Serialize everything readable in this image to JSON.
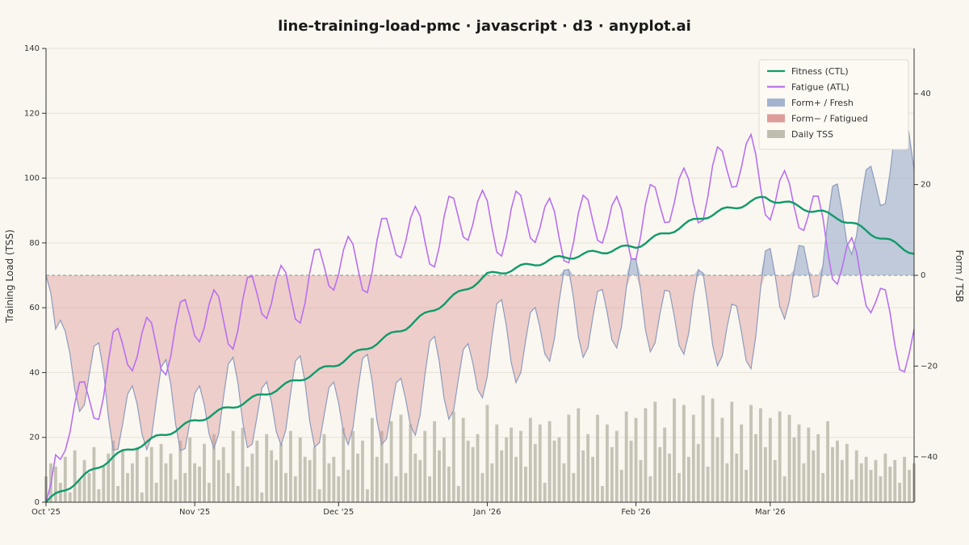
{
  "chart_data": {
    "type": "line",
    "title": "line-training-load-pmc · javascript · d3 · anyplot.ai",
    "ylabel_left": "Training Load (TSS)",
    "ylabel_right": "Form / TSB",
    "x_range": [
      "2025-10-01",
      "2026-03-31"
    ],
    "ylim_left": [
      0,
      140
    ],
    "ylim_right": [
      -50,
      50
    ],
    "yticks_left": [
      "0",
      "20",
      "40",
      "60",
      "80",
      "100",
      "120",
      "140"
    ],
    "yticks_right": [
      "−40",
      "−20",
      "0",
      "20",
      "40"
    ],
    "x_tick_labels": [
      "Oct '25",
      "Nov '25",
      "Dec '25",
      "Jan '26",
      "Feb '26",
      "Mar '26"
    ],
    "grid": true,
    "legend_position": "top-right",
    "legend": [
      {
        "key": "ctl",
        "label": "Fitness (CTL)",
        "color": "#0f9a6a",
        "kind": "line"
      },
      {
        "key": "atl",
        "label": "Fatigue (ATL)",
        "color": "#b86ff0",
        "kind": "line"
      },
      {
        "key": "form_pos",
        "label": "Form+ / Fresh",
        "color": "#9aaccc",
        "kind": "area"
      },
      {
        "key": "form_neg",
        "label": "Form− / Fatigued",
        "color": "#d99090",
        "kind": "area"
      },
      {
        "key": "tss",
        "label": "Daily TSS",
        "color": "#b8b5a8",
        "kind": "bar"
      }
    ],
    "ctl_keypoints": [
      [
        "2025-10-01",
        0
      ],
      [
        "2025-10-15",
        14
      ],
      [
        "2025-11-01",
        25
      ],
      [
        "2025-11-15",
        33
      ],
      [
        "2025-12-01",
        43
      ],
      [
        "2025-12-15",
        54
      ],
      [
        "2026-01-01",
        70
      ],
      [
        "2026-01-15",
        75
      ],
      [
        "2026-02-01",
        79
      ],
      [
        "2026-02-15",
        88
      ],
      [
        "2026-02-28",
        94
      ],
      [
        "2026-03-05",
        92
      ],
      [
        "2026-03-15",
        88
      ],
      [
        "2026-03-25",
        81
      ],
      [
        "2026-03-31",
        77
      ]
    ],
    "atl_keypoints": [
      [
        "2025-10-01",
        0
      ],
      [
        "2025-10-05",
        22
      ],
      [
        "2025-10-10",
        33
      ],
      [
        "2025-10-15",
        44
      ],
      [
        "2025-11-01",
        55
      ],
      [
        "2025-11-15",
        62
      ],
      [
        "2025-12-01",
        72
      ],
      [
        "2025-12-15",
        82
      ],
      [
        "2026-01-01",
        88
      ],
      [
        "2026-01-15",
        85
      ],
      [
        "2026-02-01",
        86
      ],
      [
        "2026-02-15",
        98
      ],
      [
        "2026-02-25",
        105
      ],
      [
        "2026-03-05",
        91
      ],
      [
        "2026-03-10",
        88
      ],
      [
        "2026-03-15",
        78
      ],
      [
        "2026-03-20",
        68
      ],
      [
        "2026-03-26",
        55
      ],
      [
        "2026-03-31",
        48
      ]
    ],
    "tss_daily": [
      8,
      12,
      11,
      6,
      14,
      3,
      16,
      7,
      13,
      9,
      17,
      4,
      11,
      15,
      19,
      5,
      16,
      9,
      12,
      17,
      3,
      14,
      17,
      6,
      18,
      12,
      15,
      7,
      19,
      9,
      20,
      12,
      11,
      18,
      6,
      21,
      13,
      17,
      9,
      22,
      5,
      23,
      11,
      15,
      19,
      3,
      21,
      16,
      13,
      18,
      9,
      22,
      8,
      20,
      14,
      13,
      17,
      4,
      21,
      12,
      14,
      8,
      23,
      10,
      22,
      15,
      19,
      4,
      26,
      14,
      22,
      12,
      25,
      8,
      27,
      9,
      24,
      15,
      13,
      22,
      8,
      25,
      16,
      20,
      11,
      28,
      5,
      26,
      19,
      17,
      21,
      9,
      30,
      12,
      24,
      16,
      20,
      23,
      14,
      22,
      11,
      26,
      18,
      24,
      6,
      25,
      19,
      20,
      12,
      27,
      9,
      29,
      16,
      21,
      14,
      27,
      5,
      24,
      17,
      22,
      10,
      28,
      19,
      26,
      13,
      29,
      8,
      31,
      17,
      23,
      15,
      32,
      9,
      30,
      14,
      27,
      18,
      33,
      11,
      32,
      20,
      26,
      12,
      31,
      15,
      24,
      10,
      30,
      21,
      29,
      17,
      26,
      13,
      28,
      8,
      27,
      20,
      24,
      12,
      23,
      16,
      21,
      9,
      25,
      17,
      19,
      13,
      18,
      7,
      16,
      12,
      14,
      10,
      13,
      8,
      15,
      11,
      13,
      6,
      14,
      10,
      12,
      9,
      11,
      7,
      11,
      5
    ]
  }
}
